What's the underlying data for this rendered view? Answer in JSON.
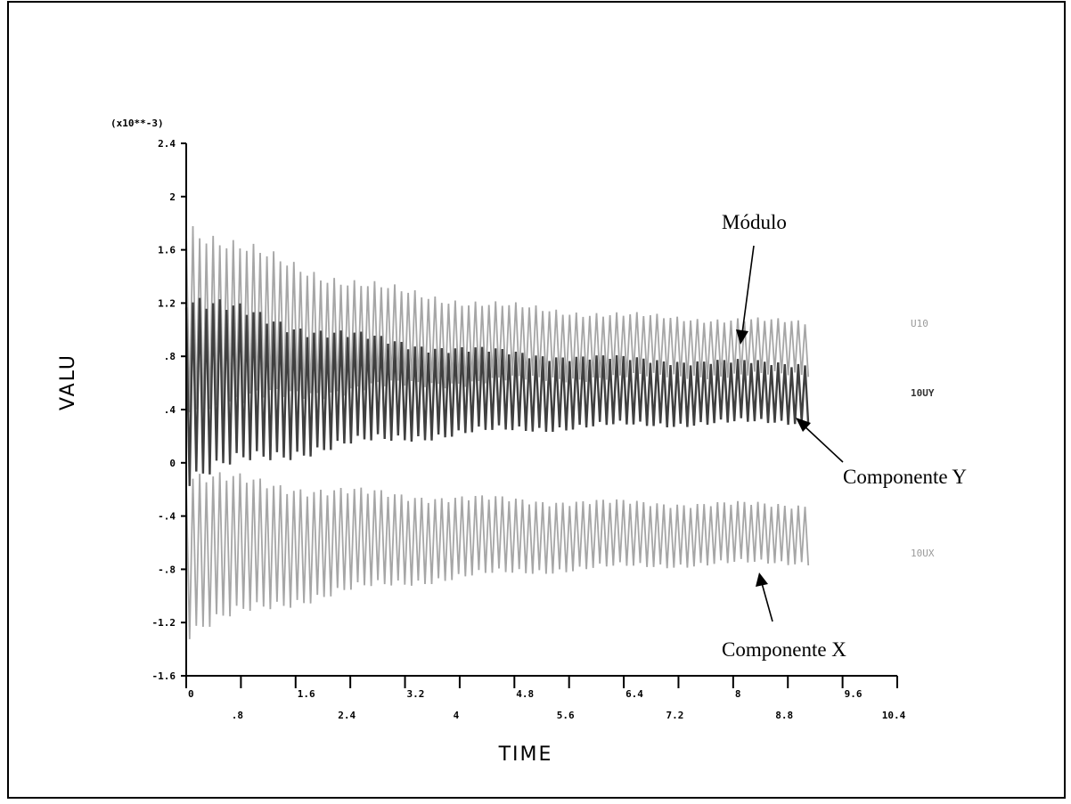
{
  "colors": {
    "modulo": "#a6a6a6",
    "comp_y": "#404040",
    "comp_x": "#a6a6a6",
    "axis": "#000000"
  },
  "chart_data": {
    "type": "line",
    "multiplier_label": "(x10**-3)",
    "xlabel": "TIME",
    "ylabel": "VALU",
    "xlim": [
      0,
      10.4
    ],
    "ylim": [
      -1.6,
      2.4
    ],
    "x_ticks_lower": [
      "0",
      "1.6",
      "3.2",
      "4.8",
      "6.4",
      "8",
      "9.6"
    ],
    "x_ticks_upper": [
      ".8",
      "2.4",
      "4",
      "5.6",
      "7.2",
      "8.8",
      "10.4"
    ],
    "x_tick_values_lower": [
      0,
      1.6,
      3.2,
      4.8,
      6.4,
      8,
      9.6
    ],
    "x_tick_values_upper": [
      0.8,
      2.4,
      4,
      5.6,
      7.2,
      8.8,
      10.4
    ],
    "y_ticks": [
      "2.4",
      "2",
      "1.6",
      "1.2",
      ".8",
      ".4",
      "0",
      "-.4",
      "-.8",
      "-1.2",
      "-1.6"
    ],
    "y_tick_values": [
      2.4,
      2.0,
      1.6,
      1.2,
      0.8,
      0.4,
      0.0,
      -0.4,
      -0.8,
      -1.2,
      -1.6
    ],
    "legend": [
      "U10",
      "10UY",
      "10UX"
    ],
    "series": [
      {
        "name": "U10",
        "x_end": 9.1,
        "envelope_start": [
          0.3,
          1.9
        ],
        "envelope_end": [
          0.65,
          1.05
        ],
        "center": 0.85
      },
      {
        "name": "10UY",
        "x_end": 9.1,
        "envelope_start": [
          -0.2,
          1.35
        ],
        "envelope_end": [
          0.3,
          0.75
        ],
        "center": 0.55
      },
      {
        "name": "10UX",
        "x_end": 9.1,
        "envelope_start": [
          -1.35,
          0.0
        ],
        "envelope_end": [
          -0.75,
          -0.3
        ],
        "center": -0.55
      }
    ],
    "annotations": [
      {
        "text": "Módulo",
        "target_series": "U10"
      },
      {
        "text": "Componente Y",
        "target_series": "10UY"
      },
      {
        "text": "Componente X",
        "target_series": "10UX"
      }
    ]
  }
}
